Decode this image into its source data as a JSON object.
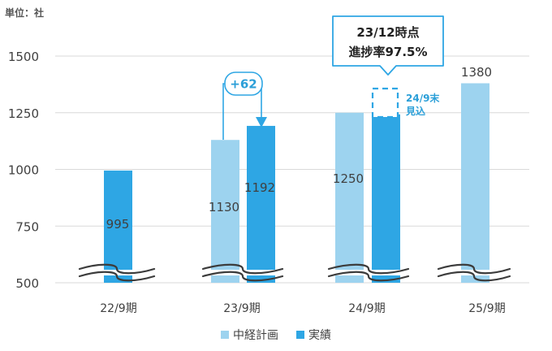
{
  "chart_data": {
    "type": "bar",
    "unit_label": "単位：社",
    "categories": [
      "22/9期",
      "23/9期",
      "24/9期",
      "25/9期"
    ],
    "series": [
      {
        "name": "中経計画",
        "values": [
          null,
          1130,
          1250,
          1380
        ]
      },
      {
        "name": "実績",
        "values": [
          995,
          1192,
          1250,
          null
        ]
      }
    ],
    "yticks": [
      500,
      750,
      1000,
      1250,
      1500
    ],
    "ylim": [
      500,
      1600
    ],
    "grid": true,
    "legend_position": "bottom",
    "axis_break": true,
    "data_labels": {
      "plan": [
        "",
        "1130",
        "1250",
        "1380"
      ],
      "actual": [
        "995",
        "1192",
        "",
        ""
      ]
    },
    "annotations": {
      "diff_label": "+62",
      "forecast_label": [
        "24/9末",
        "見込"
      ],
      "callout_lines": [
        "23/12時点",
        "進捗率97.5%"
      ]
    },
    "colors": {
      "plan": "#9dd3ef",
      "actual": "#2ea6e4",
      "grid": "#d9d9d9",
      "text": "#404040",
      "accent_text": "#2b9fd8"
    }
  }
}
